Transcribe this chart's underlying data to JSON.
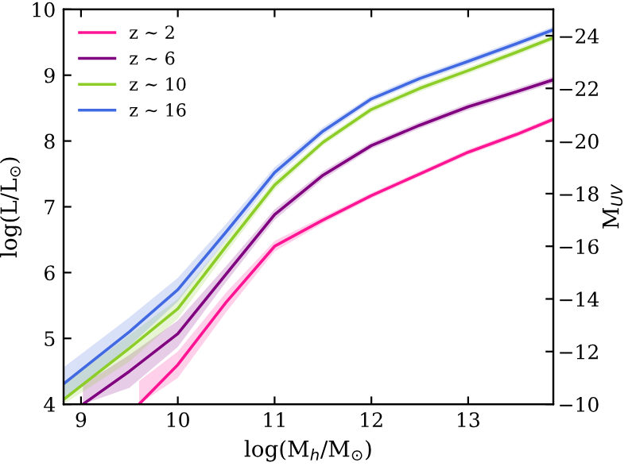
{
  "chart_data": {
    "type": "line",
    "xlabel": "log(M$_{h}$/M$_{⊙}$)",
    "ylabel": "log(L/L$_{⊙}$)",
    "y2label": "M$_{UV}$",
    "xlim": [
      8.82,
      13.88
    ],
    "xticks": [
      9,
      10,
      11,
      12,
      13
    ],
    "ylim": [
      4,
      10
    ],
    "yticks": [
      4,
      5,
      6,
      7,
      8,
      9,
      10
    ],
    "y2lim": [
      -10,
      -25
    ],
    "y2ticks": [
      {
        "value": -10,
        "label": "−10"
      },
      {
        "value": -12,
        "label": "−12"
      },
      {
        "value": -14,
        "label": "−14"
      },
      {
        "value": -16,
        "label": "−16"
      },
      {
        "value": -18,
        "label": "−18"
      },
      {
        "value": -20,
        "label": "−20"
      },
      {
        "value": -22,
        "label": "−22"
      },
      {
        "value": -24,
        "label": "−24"
      }
    ],
    "legend": "top left",
    "grid": false,
    "marker": "none",
    "line_style": "solid",
    "series": [
      {
        "name": "z ∼ 2",
        "color": "#ff1493",
        "x": [
          9.6,
          10,
          10.5,
          11,
          11.5,
          12,
          12.5,
          13,
          13.5,
          13.88
        ],
        "values": [
          4.0,
          4.6,
          5.55,
          6.4,
          6.8,
          7.17,
          7.5,
          7.83,
          8.1,
          8.33
        ],
        "lower": [
          4.0,
          4.4,
          5.4,
          6.32,
          6.75,
          7.13,
          7.46,
          7.79,
          8.06,
          8.29
        ],
        "upper": [
          4.35,
          4.8,
          5.7,
          6.48,
          6.85,
          7.21,
          7.54,
          7.87,
          8.14,
          8.37
        ]
      },
      {
        "name": "z ∼ 6",
        "color": "#800080",
        "x": [
          9.02,
          9.5,
          10,
          10.5,
          11,
          11.5,
          12,
          12.5,
          13,
          13.5,
          13.88
        ],
        "values": [
          4.0,
          4.5,
          5.07,
          5.98,
          6.88,
          7.48,
          7.93,
          8.24,
          8.52,
          8.75,
          8.93
        ],
        "lower": [
          4.0,
          4.25,
          4.87,
          5.86,
          6.8,
          7.42,
          7.88,
          8.19,
          8.47,
          8.7,
          8.88
        ],
        "upper": [
          4.3,
          4.75,
          5.27,
          6.1,
          6.96,
          7.54,
          7.98,
          8.29,
          8.57,
          8.8,
          8.98
        ]
      },
      {
        "name": "z ∼ 10",
        "color": "#8ccd28",
        "x": [
          8.82,
          9.5,
          10,
          10.5,
          11,
          11.5,
          12,
          12.5,
          13,
          13.5,
          13.88
        ],
        "values": [
          4.07,
          4.85,
          5.45,
          6.4,
          7.33,
          7.98,
          8.48,
          8.8,
          9.07,
          9.35,
          9.57
        ],
        "lower": [
          4.0,
          4.65,
          5.3,
          6.3,
          7.26,
          7.93,
          8.43,
          8.75,
          9.02,
          9.3,
          9.52
        ],
        "upper": [
          4.3,
          5.05,
          5.6,
          6.5,
          7.4,
          8.03,
          8.53,
          8.85,
          9.12,
          9.4,
          9.62
        ]
      },
      {
        "name": "z ∼ 16",
        "color": "#4169e1",
        "x": [
          8.82,
          9.5,
          10,
          10.5,
          11,
          11.5,
          12,
          12.5,
          13,
          13.5,
          13.88
        ],
        "values": [
          4.31,
          5.1,
          5.74,
          6.62,
          7.52,
          8.15,
          8.64,
          8.95,
          9.21,
          9.48,
          9.69
        ],
        "lower": [
          4.06,
          4.88,
          5.56,
          6.5,
          7.44,
          8.09,
          8.59,
          8.9,
          9.16,
          9.43,
          9.64
        ],
        "upper": [
          4.56,
          5.32,
          5.92,
          6.74,
          7.6,
          8.21,
          8.69,
          9.0,
          9.26,
          9.53,
          9.74
        ]
      }
    ]
  }
}
